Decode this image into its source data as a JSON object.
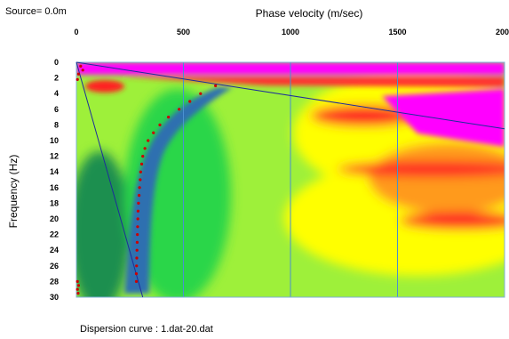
{
  "header": {
    "source_label": "Source=  0.0m"
  },
  "footer": {
    "curve_label": "Dispersion curve : 1.dat-20.dat"
  },
  "chart_data": {
    "type": "heatmap",
    "title": "",
    "xlabel": "Phase velocity (m/sec)",
    "ylabel": "Frequency (Hz)",
    "xlim": [
      0,
      2000
    ],
    "ylim": [
      0,
      30
    ],
    "y_inverted": true,
    "x_axis_position": "top",
    "x_ticks": [
      0,
      500,
      1000,
      1500,
      2000
    ],
    "y_ticks": [
      0,
      2,
      4,
      6,
      8,
      10,
      12,
      14,
      16,
      18,
      20,
      22,
      24,
      26,
      28,
      30
    ],
    "grid": true,
    "colors": {
      "magenta": "#ff00ff",
      "red": "#ff1010",
      "orange": "#ff9a1a",
      "yellow": "#ffff00",
      "lime": "#a8ff2a",
      "green": "#2cd64a",
      "dark_green": "#1f8f4f",
      "blue": "#2e6fb0",
      "grid": "#4a90d0",
      "line": "#1d2d9a",
      "points": "#cc0000"
    },
    "dispersion_points": [
      {
        "f": 0.5,
        "v": 20
      },
      {
        "f": 1.0,
        "v": 30
      },
      {
        "f": 1.5,
        "v": 10
      },
      {
        "f": 2.2,
        "v": 5
      },
      {
        "f": 3.0,
        "v": 650
      },
      {
        "f": 4.0,
        "v": 580
      },
      {
        "f": 5.0,
        "v": 530
      },
      {
        "f": 6.0,
        "v": 480
      },
      {
        "f": 7.0,
        "v": 430
      },
      {
        "f": 8.0,
        "v": 390
      },
      {
        "f": 9.0,
        "v": 360
      },
      {
        "f": 10.0,
        "v": 335
      },
      {
        "f": 11.0,
        "v": 320
      },
      {
        "f": 12.0,
        "v": 310
      },
      {
        "f": 13.0,
        "v": 305
      },
      {
        "f": 14.0,
        "v": 300
      },
      {
        "f": 15.0,
        "v": 298
      },
      {
        "f": 16.0,
        "v": 295
      },
      {
        "f": 17.0,
        "v": 293
      },
      {
        "f": 18.0,
        "v": 290
      },
      {
        "f": 19.0,
        "v": 288
      },
      {
        "f": 20.0,
        "v": 287
      },
      {
        "f": 21.0,
        "v": 286
      },
      {
        "f": 22.0,
        "v": 285
      },
      {
        "f": 23.0,
        "v": 284
      },
      {
        "f": 24.0,
        "v": 283
      },
      {
        "f": 25.0,
        "v": 282
      },
      {
        "f": 26.0,
        "v": 281
      },
      {
        "f": 27.0,
        "v": 280
      },
      {
        "f": 28.0,
        "v": 280
      },
      {
        "f": 28.0,
        "v": 5
      },
      {
        "f": 28.5,
        "v": 10
      },
      {
        "f": 29.0,
        "v": 5
      },
      {
        "f": 29.5,
        "v": 8
      }
    ],
    "reference_lines": [
      {
        "from": {
          "v": 0,
          "f": 0
        },
        "to": {
          "v": 2000,
          "f": 8.5
        }
      },
      {
        "from": {
          "v": 0,
          "f": 0
        },
        "to": {
          "v": 310,
          "f": 30
        }
      }
    ]
  }
}
